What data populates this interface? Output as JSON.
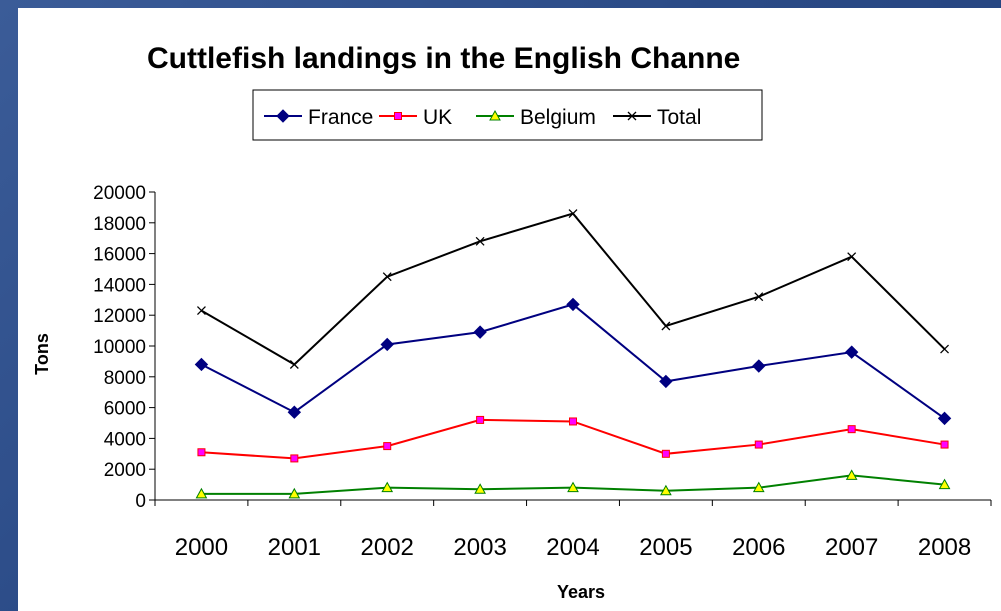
{
  "chart_data": {
    "type": "line",
    "title": "Cuttlefish landings in the English Channe",
    "xlabel": "Years",
    "ylabel": "Tons",
    "categories": [
      "2000",
      "2001",
      "2002",
      "2003",
      "2004",
      "2005",
      "2006",
      "2007",
      "2008"
    ],
    "ylim": [
      0,
      20000
    ],
    "yticks": [
      0,
      2000,
      4000,
      6000,
      8000,
      10000,
      12000,
      14000,
      16000,
      18000,
      20000
    ],
    "grid": false,
    "legend_position": "top",
    "series": [
      {
        "name": "France",
        "color": "#000080",
        "marker": "diamond",
        "values": [
          8800,
          5700,
          10100,
          10900,
          12700,
          7700,
          8700,
          9600,
          5300
        ]
      },
      {
        "name": "UK",
        "color": "#ff0000",
        "marker": "square",
        "values": [
          3100,
          2700,
          3500,
          5200,
          5100,
          3000,
          3600,
          4600,
          3600
        ]
      },
      {
        "name": "Belgium",
        "color": "#008000",
        "marker": "triangle",
        "values": [
          400,
          400,
          800,
          700,
          800,
          600,
          800,
          1600,
          1000
        ]
      },
      {
        "name": "Total",
        "color": "#000000",
        "marker": "x",
        "values": [
          12300,
          8800,
          14500,
          16800,
          18600,
          11300,
          13200,
          15800,
          9800
        ]
      }
    ]
  }
}
